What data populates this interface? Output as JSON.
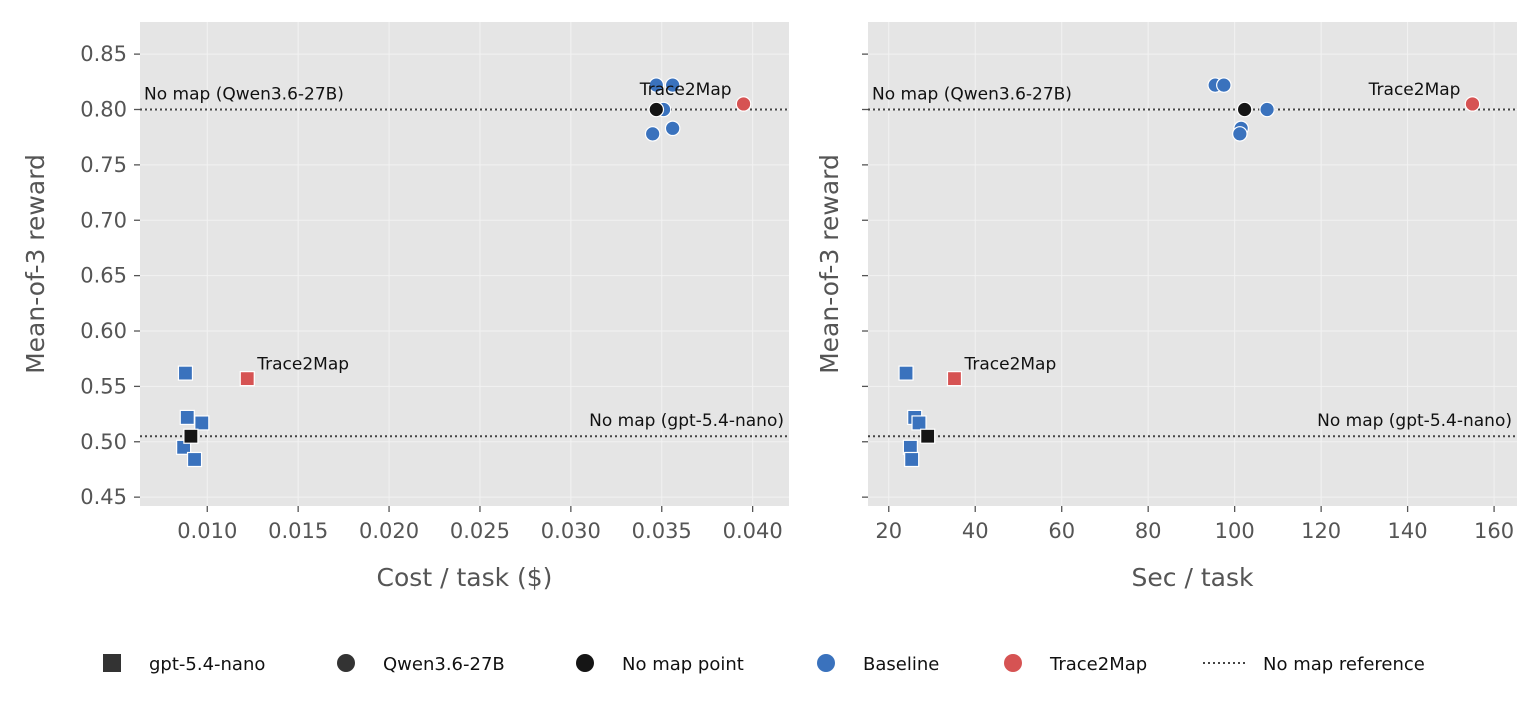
{
  "colors": {
    "background": "#e5e5e5",
    "grid": "#f2f2f2",
    "baseline": "#3a72bd",
    "trace2map": "#d65353",
    "no_map_point": "#151515",
    "model_marker": "#333333",
    "reference_line": "#444444"
  },
  "chart_data": [
    {
      "type": "scatter",
      "xlabel": "Cost / task ($)",
      "ylabel": "Mean-of-3 reward",
      "xlim": [
        0.0063,
        0.042
      ],
      "ylim": [
        0.442,
        0.879
      ],
      "xticks": [
        "0.010",
        "0.015",
        "0.020",
        "0.025",
        "0.030",
        "0.035",
        "0.040"
      ],
      "yticks": [
        "0.45",
        "0.50",
        "0.55",
        "0.60",
        "0.65",
        "0.70",
        "0.75",
        "0.80",
        "0.85"
      ],
      "grid": true,
      "reference_lines": [
        {
          "y": 0.505,
          "label": "No map (gpt-5.4-nano)",
          "label_align": "right"
        },
        {
          "y": 0.8,
          "label": "No map (Qwen3.6-27B)",
          "label_align": "left"
        }
      ],
      "series": [
        {
          "model": "gpt-5.4-nano",
          "kind": "Baseline",
          "marker": "square",
          "points": [
            [
              0.0088,
              0.562
            ],
            [
              0.0089,
              0.522
            ],
            [
              0.0097,
              0.517
            ],
            [
              0.0087,
              0.495
            ],
            [
              0.0093,
              0.484
            ]
          ]
        },
        {
          "model": "gpt-5.4-nano",
          "kind": "No map point",
          "marker": "square",
          "points": [
            [
              0.0091,
              0.505
            ]
          ]
        },
        {
          "model": "gpt-5.4-nano",
          "kind": "Trace2Map",
          "marker": "square",
          "points": [
            [
              0.0122,
              0.557
            ]
          ],
          "annotation": "Trace2Map"
        },
        {
          "model": "Qwen3.6-27B",
          "kind": "Baseline",
          "marker": "circle",
          "points": [
            [
              0.0347,
              0.822
            ],
            [
              0.0356,
              0.822
            ],
            [
              0.0351,
              0.8
            ],
            [
              0.0356,
              0.783
            ],
            [
              0.0345,
              0.778
            ]
          ]
        },
        {
          "model": "Qwen3.6-27B",
          "kind": "No map point",
          "marker": "circle",
          "points": [
            [
              0.0347,
              0.8
            ]
          ]
        },
        {
          "model": "Qwen3.6-27B",
          "kind": "Trace2Map",
          "marker": "circle",
          "points": [
            [
              0.0395,
              0.805
            ]
          ],
          "annotation": "Trace2Map"
        }
      ]
    },
    {
      "type": "scatter",
      "xlabel": "Sec / task",
      "ylabel": "Mean-of-3 reward",
      "xlim": [
        15.2,
        165.3
      ],
      "ylim": [
        0.442,
        0.879
      ],
      "xticks": [
        "20",
        "40",
        "60",
        "80",
        "100",
        "120",
        "140",
        "160"
      ],
      "yticks": [],
      "grid": true,
      "reference_lines": [
        {
          "y": 0.505,
          "label": "No map (gpt-5.4-nano)",
          "label_align": "right"
        },
        {
          "y": 0.8,
          "label": "No map (Qwen3.6-27B)",
          "label_align": "left"
        }
      ],
      "series": [
        {
          "model": "gpt-5.4-nano",
          "kind": "Baseline",
          "marker": "square",
          "points": [
            [
              24.0,
              0.562
            ],
            [
              26.0,
              0.522
            ],
            [
              27.0,
              0.517
            ],
            [
              25.0,
              0.495
            ],
            [
              25.3,
              0.484
            ]
          ]
        },
        {
          "model": "gpt-5.4-nano",
          "kind": "No map point",
          "marker": "square",
          "points": [
            [
              29.0,
              0.505
            ]
          ]
        },
        {
          "model": "gpt-5.4-nano",
          "kind": "Trace2Map",
          "marker": "square",
          "points": [
            [
              35.2,
              0.557
            ]
          ],
          "annotation": "Trace2Map"
        },
        {
          "model": "Qwen3.6-27B",
          "kind": "Baseline",
          "marker": "circle",
          "points": [
            [
              95.5,
              0.822
            ],
            [
              97.5,
              0.822
            ],
            [
              107.5,
              0.8
            ],
            [
              101.5,
              0.783
            ],
            [
              101.2,
              0.778
            ]
          ]
        },
        {
          "model": "Qwen3.6-27B",
          "kind": "No map point",
          "marker": "circle",
          "points": [
            [
              102.3,
              0.8
            ]
          ]
        },
        {
          "model": "Qwen3.6-27B",
          "kind": "Trace2Map",
          "marker": "circle",
          "points": [
            [
              155.0,
              0.805
            ]
          ],
          "annotation": "Trace2Map"
        }
      ]
    }
  ],
  "legend": {
    "placement": "bottom",
    "items": [
      {
        "label": "gpt-5.4-nano",
        "marker": "square",
        "color_key": "model_marker"
      },
      {
        "label": "Qwen3.6-27B",
        "marker": "circle",
        "color_key": "model_marker"
      },
      {
        "label": "No map point",
        "marker": "circle",
        "color_key": "no_map_point"
      },
      {
        "label": "Baseline",
        "marker": "circle",
        "color_key": "baseline"
      },
      {
        "label": "Trace2Map",
        "marker": "circle",
        "color_key": "trace2map"
      },
      {
        "label": "No map reference",
        "marker": "dotted-line",
        "color_key": "reference_line"
      }
    ]
  }
}
